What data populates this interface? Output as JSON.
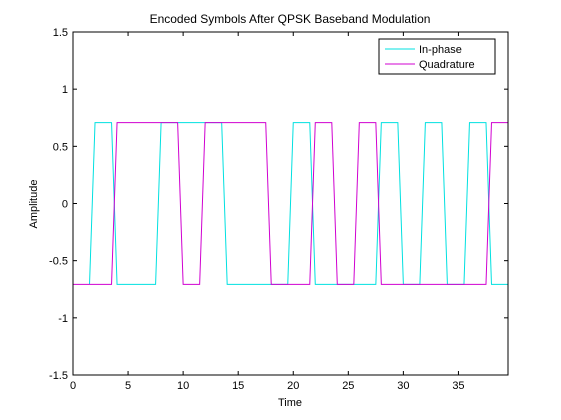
{
  "chart_data": {
    "type": "line",
    "title": "Encoded Symbols After QPSK Baseband Modulation",
    "xlabel": "Time",
    "ylabel": "Amplitude",
    "xlim": [
      0,
      39.5
    ],
    "ylim": [
      -1.5,
      1.5
    ],
    "xticks": [
      0,
      5,
      10,
      15,
      20,
      25,
      30,
      35
    ],
    "xtick_labels": [
      "0",
      "5",
      "10",
      "15",
      "20",
      "25",
      "30",
      "35"
    ],
    "yticks": [
      1.5,
      1,
      0.5,
      0,
      -0.5,
      -1,
      -1.5
    ],
    "ytick_labels": [
      "1.5",
      "1",
      "0.5",
      "0",
      "-0.5",
      "-1",
      "-1.5"
    ],
    "grid": false,
    "legend_position": "top-right",
    "series": [
      {
        "name": "In-phase",
        "color": "#00e0e0",
        "x": [
          1.5,
          2.0,
          3.5,
          4.0,
          7.5,
          8.0,
          9.5,
          10.0,
          13.5,
          14.0,
          19.5,
          20.0,
          21.5,
          22.0,
          27.5,
          28.0,
          29.5,
          30.0,
          31.5,
          32.0,
          33.5,
          34.0,
          35.5,
          36.0,
          37.5,
          38.0,
          39.5
        ],
        "y": [
          -0.707,
          0.707,
          0.707,
          -0.707,
          -0.707,
          0.707,
          0.707,
          0.707,
          0.707,
          -0.707,
          -0.707,
          0.707,
          0.707,
          -0.707,
          -0.707,
          0.707,
          0.707,
          -0.707,
          -0.707,
          0.707,
          0.707,
          -0.707,
          -0.707,
          0.707,
          0.707,
          -0.707,
          -0.707
        ]
      },
      {
        "name": "Quadrature",
        "color": "#d000d0",
        "x": [
          0,
          3.5,
          4.0,
          9.5,
          10.0,
          11.5,
          12.0,
          17.5,
          18.0,
          21.5,
          22.0,
          23.5,
          24.0,
          25.5,
          26.0,
          27.5,
          28.0,
          37.5,
          38.0,
          39.5
        ],
        "y": [
          -0.707,
          -0.707,
          0.707,
          0.707,
          -0.707,
          -0.707,
          0.707,
          0.707,
          -0.707,
          -0.707,
          0.707,
          0.707,
          -0.707,
          -0.707,
          0.707,
          0.707,
          -0.707,
          -0.707,
          0.707,
          0.707
        ]
      }
    ]
  }
}
